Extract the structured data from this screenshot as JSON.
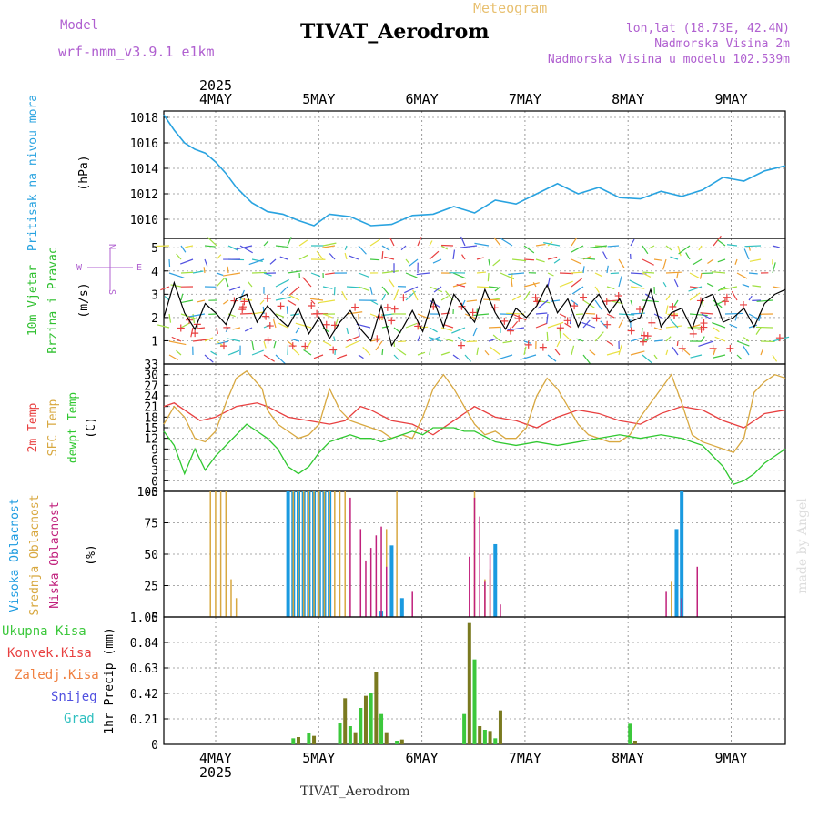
{
  "header": {
    "title": "TIVAT_Aerodrom",
    "model_label": "Model",
    "model_name": "wrf-nmm_v3.9.1  e1km",
    "meteogram_label": "Meteogram",
    "location_line1": "lon,lat (18.73E, 42.4N)",
    "location_line2": "Nadmorska Visina 2m",
    "location_line3": "Nadmorska Visina u modelu 102.539m",
    "footer_station": "TIVAT_Aerodrom",
    "watermark": "made by Angel"
  },
  "colors": {
    "pressure": "#29a3e0",
    "wind_black": "#000000",
    "temp2m": "#e84040",
    "sfc_temp": "#d8a840",
    "dewpoint": "#30c830",
    "high_cloud": "#1a9ae0",
    "mid_cloud": "#d8a840",
    "low_cloud": "#c0207c",
    "precip_total": "#3cc83c",
    "precip_conv": "#e84040",
    "precip_ice": "#f08040",
    "precip_snow": "#5050e0",
    "precip_hail": "#30c0c0",
    "marker": "#e84040"
  },
  "chart_data": [
    {
      "type": "line",
      "panel": "pressure",
      "ylabel": [
        "Pritisak na nivou mora",
        "(hPa)"
      ],
      "ylim": [
        1008.5,
        1018.5
      ],
      "yticks": [
        1010,
        1012,
        1014,
        1016,
        1018
      ],
      "x_top_labels": [
        "4MAY",
        "5MAY",
        "6MAY",
        "7MAY",
        "8MAY",
        "9MAY"
      ],
      "x_top_year": "2025",
      "x_bottom_labels": [
        "4MAY",
        "5MAY",
        "6MAY",
        "7MAY",
        "8MAY",
        "9MAY"
      ],
      "x_bottom_year": "2025",
      "xlim": [
        0,
        6
      ],
      "series": [
        {
          "x": [
            0,
            0.1,
            0.2,
            0.3,
            0.4,
            0.5,
            0.6,
            0.7,
            0.85,
            1.0,
            1.15,
            1.3,
            1.45,
            1.6,
            1.8,
            2.0,
            2.2,
            2.4,
            2.6,
            2.8,
            3.0,
            3.2,
            3.4,
            3.6,
            3.8,
            4.0,
            4.2,
            4.4,
            4.6,
            4.8,
            5.0,
            5.2,
            5.4,
            5.6,
            5.8,
            6.0
          ],
          "values": [
            1018.2,
            1017.0,
            1016.0,
            1015.5,
            1015.2,
            1014.5,
            1013.6,
            1012.5,
            1011.3,
            1010.6,
            1010.4,
            1009.9,
            1009.5,
            1010.4,
            1010.2,
            1009.5,
            1009.6,
            1010.3,
            1010.4,
            1011.0,
            1010.5,
            1011.5,
            1011.2,
            1012.0,
            1012.8,
            1012.0,
            1012.5,
            1011.7,
            1011.6,
            1012.2,
            1011.8,
            1012.3,
            1013.3,
            1013.0,
            1013.8,
            1014.2
          ]
        }
      ]
    },
    {
      "type": "line",
      "panel": "wind",
      "ylabel": [
        "10m Vjetar",
        "Brzina i Pravac",
        "(m/s)"
      ],
      "legend_compass": [
        "W",
        "E",
        "N",
        "S"
      ],
      "ylim": [
        0,
        5.4
      ],
      "yticks": [
        1,
        2,
        3,
        4,
        5
      ],
      "series": [
        {
          "name": "wind speed",
          "x": [
            0,
            0.1,
            0.2,
            0.3,
            0.4,
            0.5,
            0.6,
            0.7,
            0.8,
            0.9,
            1.0,
            1.1,
            1.2,
            1.3,
            1.4,
            1.5,
            1.6,
            1.7,
            1.8,
            1.9,
            2.0,
            2.1,
            2.2,
            2.3,
            2.4,
            2.5,
            2.6,
            2.7,
            2.8,
            2.9,
            3.0,
            3.1,
            3.2,
            3.3,
            3.4,
            3.5,
            3.6,
            3.7,
            3.8,
            3.9,
            4.0,
            4.1,
            4.2,
            4.3,
            4.4,
            4.5,
            4.6,
            4.7,
            4.8,
            4.9,
            5.0,
            5.1,
            5.2,
            5.3,
            5.4,
            5.5,
            5.6,
            5.7,
            5.8,
            5.9,
            6.0
          ],
          "values": [
            2.0,
            3.5,
            2.2,
            1.5,
            2.6,
            2.2,
            1.7,
            2.8,
            3.0,
            1.8,
            2.5,
            2.0,
            1.6,
            2.4,
            1.3,
            2.0,
            1.1,
            1.8,
            2.3,
            1.5,
            1.0,
            2.5,
            0.8,
            1.5,
            2.3,
            1.4,
            2.8,
            1.6,
            3.0,
            2.4,
            1.8,
            3.2,
            2.2,
            1.5,
            2.4,
            2.0,
            2.5,
            3.4,
            2.2,
            2.8,
            1.6,
            2.5,
            3.0,
            2.2,
            2.8,
            1.8,
            2.0,
            3.2,
            1.6,
            2.2,
            2.4,
            1.5,
            2.8,
            3.0,
            1.8,
            2.0,
            2.4,
            1.6,
            2.6,
            3.0,
            3.2
          ]
        }
      ]
    },
    {
      "type": "line",
      "panel": "temperature",
      "ylabel": [
        "2m Temp",
        "SFC Temp",
        "dewpt Temp",
        "(C)"
      ],
      "ylim": [
        -3,
        33
      ],
      "yticks": [
        -3,
        0,
        3,
        6,
        9,
        12,
        15,
        18,
        21,
        24,
        27,
        30,
        33
      ],
      "series": [
        {
          "name": "2m Temp",
          "x": [
            0,
            0.1,
            0.2,
            0.35,
            0.5,
            0.7,
            0.9,
            1.0,
            1.2,
            1.4,
            1.6,
            1.75,
            1.9,
            2.0,
            2.2,
            2.4,
            2.6,
            2.8,
            3.0,
            3.2,
            3.4,
            3.6,
            3.8,
            4.0,
            4.2,
            4.4,
            4.6,
            4.8,
            5.0,
            5.2,
            5.4,
            5.6,
            5.8,
            6.0
          ],
          "values": [
            21,
            22,
            20,
            17,
            18,
            21,
            22,
            21,
            18,
            17,
            16,
            17,
            21,
            20,
            17,
            16,
            13,
            17,
            21,
            18,
            17,
            15,
            18,
            20,
            19,
            17,
            16,
            19,
            21,
            20,
            17,
            15,
            19,
            20
          ]
        },
        {
          "name": "SFC Temp",
          "x": [
            0,
            0.1,
            0.2,
            0.3,
            0.4,
            0.5,
            0.6,
            0.7,
            0.8,
            0.95,
            1.0,
            1.1,
            1.2,
            1.3,
            1.4,
            1.5,
            1.6,
            1.7,
            1.8,
            1.9,
            2.0,
            2.1,
            2.2,
            2.3,
            2.4,
            2.5,
            2.6,
            2.7,
            2.8,
            3.0,
            3.1,
            3.2,
            3.3,
            3.4,
            3.5,
            3.6,
            3.7,
            3.8,
            4.0,
            4.1,
            4.2,
            4.3,
            4.4,
            4.5,
            4.6,
            4.7,
            4.8,
            4.9,
            5.0,
            5.1,
            5.2,
            5.3,
            5.4,
            5.5,
            5.6,
            5.7,
            5.8,
            5.9,
            6.0
          ],
          "values": [
            16,
            21,
            18,
            12,
            11,
            14,
            22,
            29,
            31,
            26,
            20,
            16,
            14,
            12,
            13,
            16,
            26,
            20,
            17,
            16,
            15,
            14,
            12,
            13,
            12,
            18,
            26,
            30,
            26,
            16,
            13,
            14,
            12,
            12,
            15,
            24,
            29,
            26,
            16,
            13,
            12,
            11,
            11,
            13,
            18,
            22,
            26,
            30,
            22,
            13,
            11,
            10,
            9,
            8,
            12,
            25,
            28,
            30,
            29
          ]
        },
        {
          "name": "dewpt Temp",
          "x": [
            0,
            0.1,
            0.2,
            0.3,
            0.4,
            0.5,
            0.6,
            0.7,
            0.8,
            0.9,
            1.0,
            1.1,
            1.2,
            1.3,
            1.4,
            1.5,
            1.6,
            1.7,
            1.8,
            1.9,
            2.0,
            2.1,
            2.2,
            2.3,
            2.4,
            2.5,
            2.6,
            2.7,
            2.8,
            2.9,
            3.0,
            3.2,
            3.4,
            3.6,
            3.8,
            4.0,
            4.2,
            4.4,
            4.6,
            4.8,
            5.0,
            5.2,
            5.4,
            5.5,
            5.6,
            5.7,
            5.8,
            5.9,
            6.0
          ],
          "values": [
            14,
            10,
            2,
            9,
            3,
            7,
            10,
            13,
            16,
            14,
            12,
            9,
            4,
            2,
            4,
            8,
            11,
            12,
            13,
            12,
            12,
            11,
            12,
            13,
            14,
            13,
            15,
            15,
            15,
            14,
            14,
            11,
            10,
            11,
            10,
            11,
            12,
            13,
            12,
            13,
            12,
            10,
            4,
            -1,
            0,
            2,
            5,
            7,
            9
          ]
        }
      ]
    },
    {
      "type": "bar",
      "panel": "cloud",
      "ylabel": [
        "Visoka Oblacnost",
        "Srednja Oblacnost",
        "Niska Oblacnost",
        "(%)"
      ],
      "ylim": [
        0,
        100
      ],
      "yticks": [
        0,
        25,
        50,
        75,
        100
      ],
      "series": [
        {
          "name": "Visoka Oblacnost",
          "x": [
            1.2,
            1.25,
            1.3,
            1.35,
            1.4,
            1.45,
            1.5,
            1.55,
            1.6,
            2.1,
            2.2,
            2.3,
            3.2,
            4.95,
            5.0
          ],
          "values": [
            100,
            100,
            100,
            100,
            100,
            100,
            100,
            100,
            100,
            5,
            57,
            15,
            58,
            70,
            100
          ]
        },
        {
          "name": "Srednja Oblacnost",
          "x": [
            0.45,
            0.5,
            0.55,
            0.6,
            0.65,
            0.7,
            1.25,
            1.3,
            1.35,
            1.4,
            1.45,
            1.5,
            1.55,
            1.6,
            1.65,
            1.7,
            1.75,
            2.05,
            2.15,
            2.25,
            3.0,
            3.1,
            3.15,
            4.9
          ],
          "values": [
            100,
            100,
            100,
            100,
            30,
            15,
            100,
            100,
            100,
            100,
            100,
            100,
            100,
            100,
            100,
            100,
            100,
            25,
            70,
            100,
            100,
            30,
            38,
            28
          ]
        },
        {
          "name": "Niska Oblacnost",
          "x": [
            1.8,
            1.9,
            1.95,
            2.0,
            2.05,
            2.1,
            2.15,
            2.4,
            2.95,
            3.0,
            3.05,
            3.1,
            3.15,
            3.25,
            4.85,
            5.0,
            5.15
          ],
          "values": [
            95,
            70,
            45,
            55,
            65,
            72,
            40,
            20,
            48,
            95,
            80,
            28,
            50,
            10,
            20,
            15,
            40
          ]
        }
      ]
    },
    {
      "type": "bar",
      "panel": "precipitation",
      "ylabel": [
        "1hr Precip (mm)"
      ],
      "legend": [
        "Ukupna Kisa",
        "Konvek.Kisa",
        "Zaledj.Kisa",
        "Snijeg",
        "Grad"
      ],
      "ylim": [
        0,
        1.05
      ],
      "yticks": [
        0,
        0.21,
        0.42,
        0.63,
        0.84,
        1.05
      ],
      "series": [
        {
          "name": "Ukupna Kisa",
          "x": [
            1.25,
            1.3,
            1.4,
            1.45,
            1.7,
            1.75,
            1.8,
            1.85,
            1.9,
            1.95,
            2.0,
            2.05,
            2.1,
            2.15,
            2.25,
            2.3,
            2.9,
            2.95,
            3.0,
            3.05,
            3.1,
            3.15,
            3.2,
            3.25,
            4.5,
            4.55
          ],
          "values": [
            0.05,
            0.06,
            0.09,
            0.07,
            0.18,
            0.38,
            0.15,
            0.1,
            0.3,
            0.4,
            0.42,
            0.6,
            0.25,
            0.1,
            0.03,
            0.04,
            0.25,
            1.0,
            0.7,
            0.15,
            0.12,
            0.11,
            0.05,
            0.28,
            0.17,
            0.03
          ]
        }
      ]
    }
  ]
}
